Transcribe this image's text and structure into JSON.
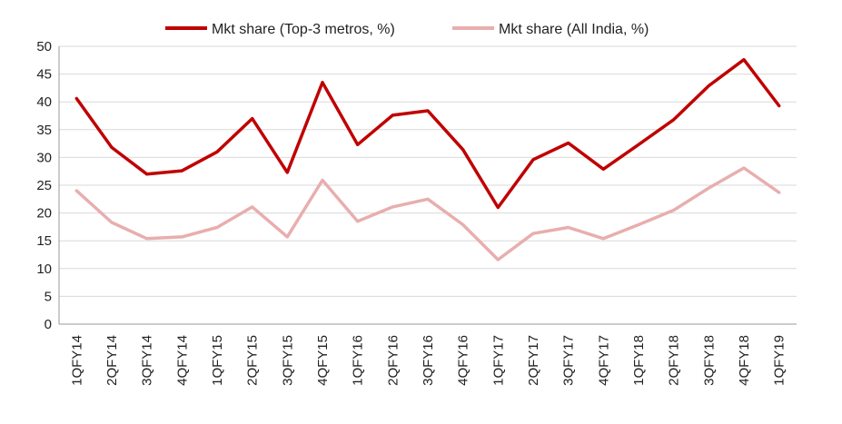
{
  "chart_data": {
    "type": "line",
    "title": "",
    "xlabel": "",
    "ylabel": "",
    "categories": [
      "1QFY14",
      "2QFY14",
      "3QFY14",
      "4QFY14",
      "1QFY15",
      "2QFY15",
      "3QFY15",
      "4QFY15",
      "1QFY16",
      "2QFY16",
      "3QFY16",
      "4QFY16",
      "1QFY17",
      "2QFY17",
      "3QFY17",
      "4QFY17",
      "1QFY18",
      "2QFY18",
      "3QFY18",
      "4QFY18",
      "1QFY19"
    ],
    "ylim": [
      0,
      50
    ],
    "yticks": [
      0,
      5,
      10,
      15,
      20,
      25,
      30,
      35,
      40,
      45,
      50
    ],
    "grid": true,
    "legend_position": "top",
    "series": [
      {
        "name": "Mkt share (Top-3 metros, %)",
        "color": "#c00000",
        "values": [
          40.6,
          31.8,
          27.0,
          27.6,
          31.0,
          37.0,
          27.3,
          43.5,
          32.3,
          37.6,
          38.4,
          31.4,
          21.0,
          29.6,
          32.6,
          27.9,
          32.3,
          36.8,
          42.9,
          47.6,
          39.3
        ]
      },
      {
        "name": "Mkt share (All India, %)",
        "color": "#e8aeae",
        "values": [
          24.0,
          18.3,
          15.4,
          15.7,
          17.4,
          21.1,
          15.7,
          25.9,
          18.5,
          21.1,
          22.5,
          17.9,
          11.6,
          16.3,
          17.4,
          15.4,
          17.9,
          20.5,
          24.5,
          28.1,
          23.7
        ]
      }
    ]
  }
}
